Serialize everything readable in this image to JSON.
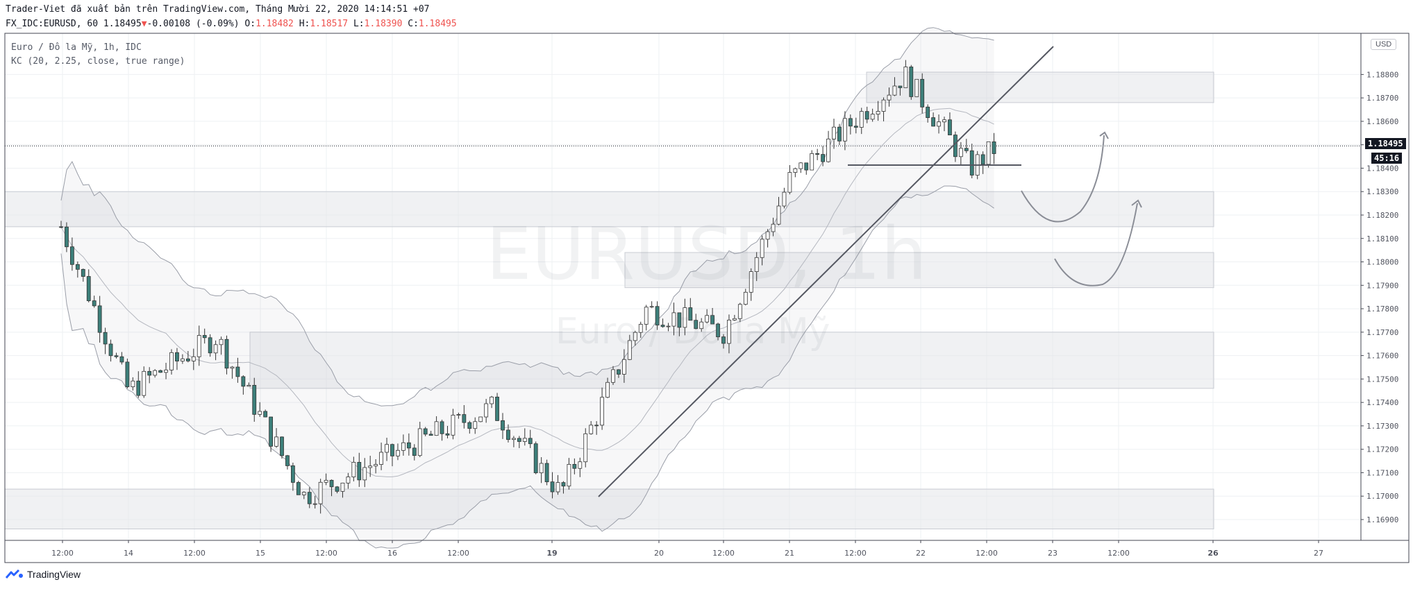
{
  "header": {
    "published_by": "Trader-Viet đã xuất bản trên TradingView.com, Tháng Mười 22, 2020 14:14:51 +07",
    "symbol_info": "FX_IDC:EURUSD, 60",
    "last": "1.18495",
    "change": "-0.00108 (-0.09%)",
    "o_label": "O:",
    "o": "1.18482",
    "h_label": "H:",
    "h": "1.18517",
    "l_label": "L:",
    "l": "1.18390",
    "c_label": "C:",
    "c": "1.18495"
  },
  "legend": {
    "series": "Euro / Đô la Mỹ, 1h, IDC",
    "indicator": "KC (20, 2.25, close, true range)"
  },
  "watermark": {
    "main": "EURUSD, 1h",
    "sub": "Euro / Đô la Mỹ"
  },
  "price_scale": {
    "currency": "USD",
    "last_price": "1.18495",
    "countdown": "45:16"
  },
  "footer": {
    "brand": "TradingView"
  },
  "colors": {
    "up": "#26a69a",
    "down": "#3d7f7a",
    "wick": "#333333",
    "zone": "#e3e5ea",
    "last_price": "#131722"
  },
  "chart_data": {
    "type": "candlestick",
    "symbol": "EURUSD",
    "interval": "1h",
    "ylim": [
      1.1683,
      1.1893
    ],
    "y_ticks": [
      "1.18800",
      "1.18700",
      "1.18600",
      "1.18500",
      "1.18400",
      "1.18300",
      "1.18200",
      "1.18100",
      "1.18000",
      "1.17900",
      "1.17800",
      "1.17700",
      "1.17600",
      "1.17500",
      "1.17400",
      "1.17300",
      "1.17200",
      "1.17100",
      "1.17000",
      "1.16900"
    ],
    "x_ticks": [
      "12:00",
      "14",
      "12:00",
      "15",
      "12:00",
      "16",
      "12:00",
      "19",
      "20",
      "12:00",
      "21",
      "12:00",
      "22",
      "12:00",
      "23",
      "12:00",
      "26",
      "27"
    ],
    "x_ticks_bold": [
      "19",
      "26"
    ],
    "key_points": [
      {
        "x": "13 Oct 12:00",
        "y": 1.1815
      },
      {
        "x": "14 Oct 00:00",
        "y": 1.1745
      },
      {
        "x": "14 Oct 16:00",
        "y": 1.1768
      },
      {
        "x": "15 Oct 08:00",
        "y": 1.17
      },
      {
        "x": "16 Oct 15:00",
        "y": 1.1738
      },
      {
        "x": "19 Oct 02:00",
        "y": 1.1701
      },
      {
        "x": "19 Oct 21:00",
        "y": 1.178
      },
      {
        "x": "20 Oct 12:00",
        "y": 1.177
      },
      {
        "x": "21 Oct 00:00",
        "y": 1.1835
      },
      {
        "x": "21 Oct 21:00",
        "y": 1.188
      },
      {
        "x": "22 Oct 09:00",
        "y": 1.184
      },
      {
        "x": "22 Oct 14:00",
        "y": 1.18495
      }
    ],
    "zones": [
      {
        "from": 1.1868,
        "to": 1.1881
      },
      {
        "from": 1.1815,
        "to": 1.183
      },
      {
        "from": 1.1789,
        "to": 1.1804
      },
      {
        "from": 1.1746,
        "to": 1.177
      },
      {
        "from": 1.1686,
        "to": 1.1703
      }
    ]
  }
}
